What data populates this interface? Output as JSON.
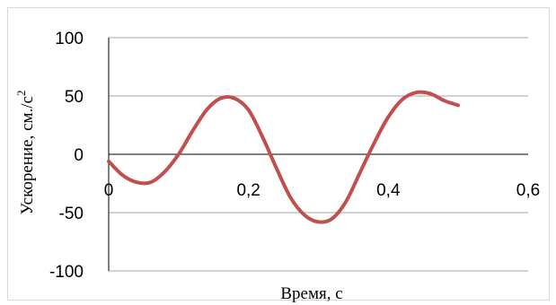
{
  "chart_data": {
    "type": "line",
    "title": "",
    "xlabel": "Время, с",
    "ylabel": "Ускорение, см./с",
    "ylabel_superscript": "2",
    "xlim": [
      0,
      0.6
    ],
    "ylim": [
      -100,
      100
    ],
    "x_ticks": [
      0,
      0.2,
      0.4,
      0.6
    ],
    "y_ticks": [
      100,
      50,
      0,
      -50,
      -100
    ],
    "x_tick_labels": [
      "0",
      "0,2",
      "0,4",
      "0,6"
    ],
    "y_tick_labels": [
      "100",
      "50",
      "0",
      "-50",
      "-100"
    ],
    "grid": "horizontal",
    "legend": "none",
    "series": [
      {
        "color": "#c0504d",
        "x": [
          0,
          0.02,
          0.04,
          0.06,
          0.08,
          0.1,
          0.12,
          0.14,
          0.16,
          0.18,
          0.2,
          0.22,
          0.24,
          0.26,
          0.28,
          0.3,
          0.32,
          0.34,
          0.36,
          0.38,
          0.4,
          0.42,
          0.44,
          0.46,
          0.48,
          0.5
        ],
        "y": [
          -6,
          -18,
          -24,
          -24,
          -15,
          0,
          20,
          38,
          48,
          48,
          38,
          15,
          -12,
          -37,
          -52,
          -58,
          -55,
          -40,
          -15,
          10,
          32,
          47,
          53,
          52,
          46,
          42
        ]
      }
    ]
  }
}
